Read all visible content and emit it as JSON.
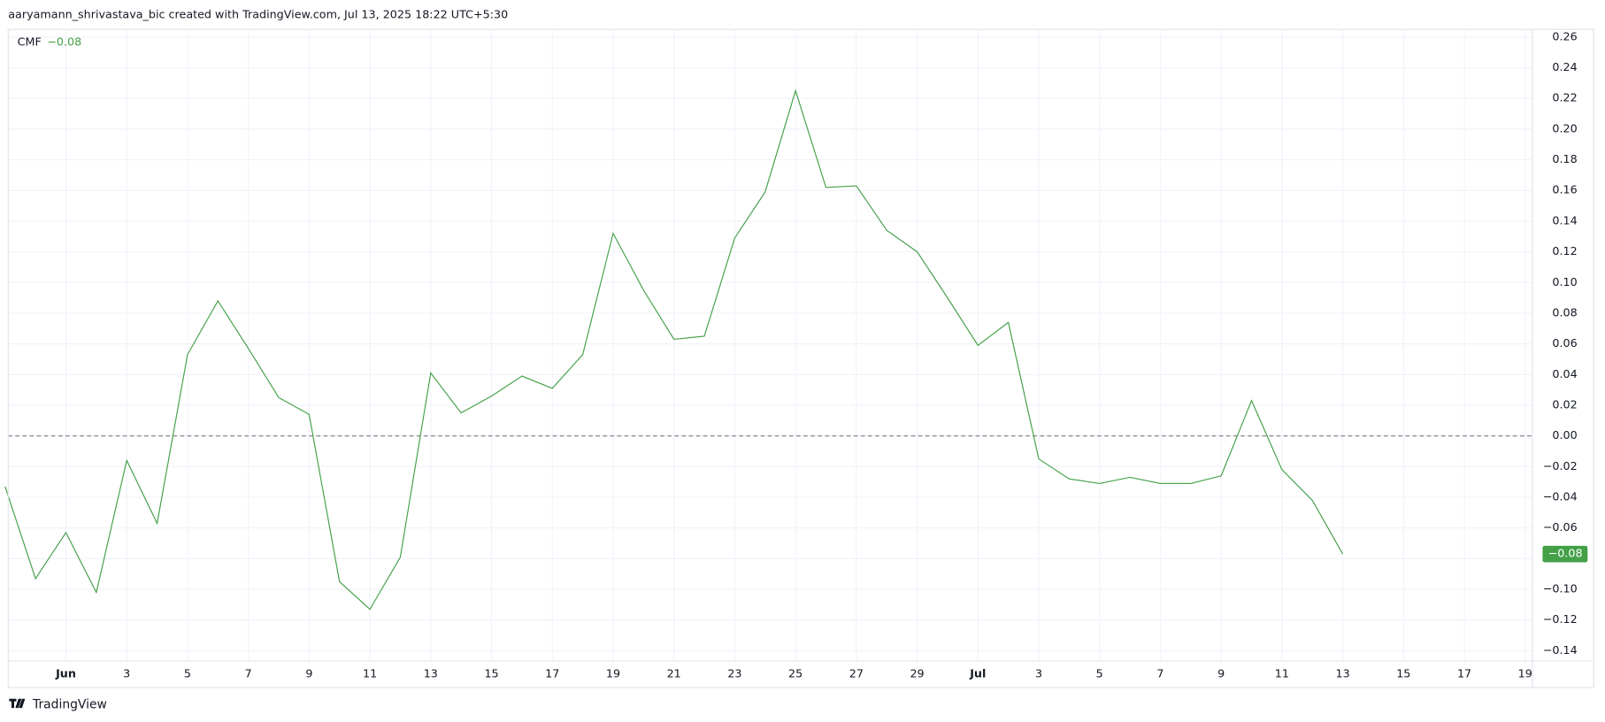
{
  "header": {
    "attribution": "aaryamann_shrivastava_bic created with TradingView.com, Jul 13, 2025 18:22 UTC+5:30"
  },
  "footer": {
    "logo": "TradingView"
  },
  "chart_data": {
    "type": "line",
    "categories": [
      null,
      null,
      "Jun",
      null,
      "3",
      null,
      "5",
      null,
      "7",
      null,
      "9",
      null,
      "11",
      null,
      "13",
      null,
      "15",
      null,
      "17",
      null,
      "19",
      null,
      "21",
      null,
      "23",
      null,
      "25",
      null,
      "27",
      null,
      "29",
      null,
      "Jul",
      null,
      "3",
      null,
      "5",
      null,
      "7",
      null,
      "9",
      null,
      "11",
      null,
      "13",
      null,
      "15",
      null,
      "17",
      null,
      "19"
    ],
    "series": [
      {
        "name": "CMF",
        "color": "#43a047",
        "values": [
          -0.033,
          -0.093,
          -0.063,
          -0.102,
          -0.016,
          -0.057,
          0.053,
          0.088,
          0.057,
          0.025,
          0.014,
          -0.095,
          -0.113,
          -0.079,
          0.041,
          0.015,
          0.026,
          0.039,
          0.031,
          0.053,
          0.132,
          0.095,
          0.063,
          0.065,
          0.129,
          0.159,
          0.225,
          0.162,
          0.163,
          0.134,
          0.12,
          0.09,
          0.059,
          0.074,
          -0.015,
          -0.028,
          -0.031,
          -0.027,
          -0.031,
          -0.031,
          -0.026,
          0.023,
          -0.022,
          -0.042,
          -0.077,
          null,
          null,
          null,
          null,
          null,
          null
        ],
        "value_labels": [
          null,
          null,
          null,
          null,
          null,
          null,
          null,
          null,
          null,
          null,
          null,
          null,
          null,
          null,
          null,
          null,
          null,
          null,
          null,
          null,
          null,
          null,
          null,
          null,
          null,
          null,
          null,
          null,
          null,
          null,
          null,
          null,
          null,
          null,
          null,
          null,
          null,
          null,
          null,
          null,
          null,
          null,
          null,
          null,
          "−0.08",
          null,
          null,
          null,
          null,
          null,
          null
        ]
      }
    ],
    "ylim": [
      -0.162,
      0.265
    ],
    "yticks": [
      0.26,
      0.24,
      0.22,
      {
        "value": 0.2,
        "label": "0.20"
      },
      0.18,
      0.16,
      0.14,
      0.12,
      {
        "value": 0.1,
        "label": "0.10"
      },
      0.08,
      0.06,
      0.04,
      0.02,
      {
        "value": 0,
        "label": "0.00"
      },
      {
        "value": -0.02,
        "label": "−0.02"
      },
      {
        "value": -0.04,
        "label": "−0.04"
      },
      {
        "value": -0.06,
        "label": "−0.06"
      },
      {
        "value": -0.08,
        "label": "−0.08"
      },
      {
        "value": -0.1,
        "label": "−0.10"
      },
      {
        "value": -0.12,
        "label": "−0.12"
      },
      {
        "value": -0.14,
        "label": "−0.14"
      }
    ],
    "hlines": [
      0
    ],
    "grid": true
  }
}
